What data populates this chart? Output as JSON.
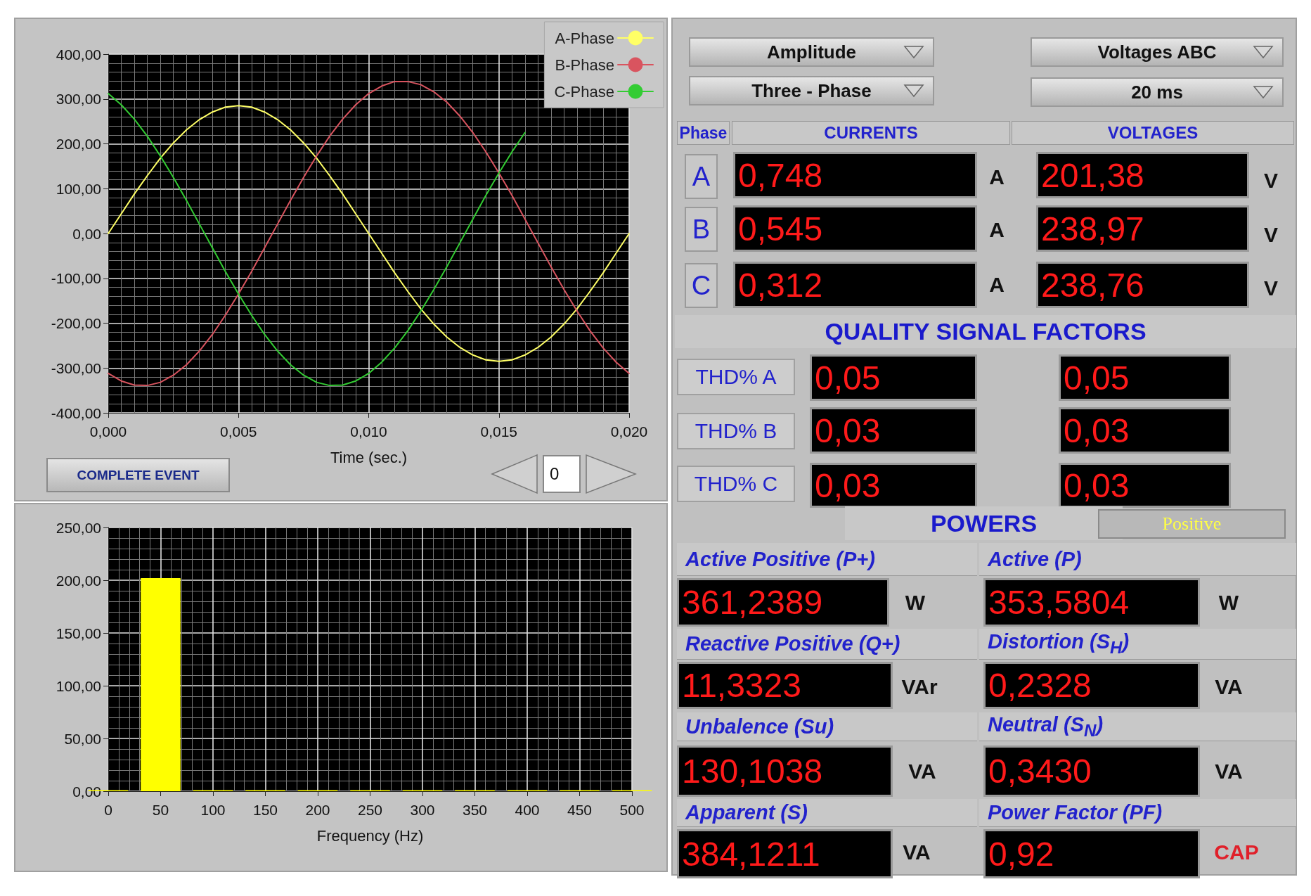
{
  "chart_data": [
    {
      "type": "line",
      "xlabel": "Time (sec.)",
      "legend": "top right",
      "grid": true,
      "x": [
        0,
        0.0005,
        0.001,
        0.0015,
        0.002,
        0.0025,
        0.003,
        0.0035,
        0.004,
        0.0045,
        0.005,
        0.0055,
        0.006,
        0.0065,
        0.007,
        0.0075,
        0.008,
        0.0085,
        0.009,
        0.0095,
        0.01,
        0.0105,
        0.011,
        0.0115,
        0.012,
        0.0125,
        0.013,
        0.0135,
        0.014,
        0.0145,
        0.015,
        0.0155,
        0.016,
        0.0165,
        0.017,
        0.0175,
        0.018,
        0.0185,
        0.019,
        0.0195,
        0.02
      ],
      "xlim": [
        0,
        0.02
      ],
      "xticks": [
        {
          "value": 0,
          "label": "0,000"
        },
        {
          "value": 0.005,
          "label": "0,005"
        },
        {
          "value": 0.01,
          "label": "0,010"
        },
        {
          "value": 0.015,
          "label": "0,015"
        },
        {
          "value": 0.02,
          "label": "0,020"
        }
      ],
      "ylim": [
        -400,
        400
      ],
      "yticks": [
        {
          "value": -400,
          "label": "-400,00"
        },
        {
          "value": -300,
          "label": "-300,00"
        },
        {
          "value": -200,
          "label": "-200,00"
        },
        {
          "value": -100,
          "label": "-100,00"
        },
        {
          "value": 0,
          "label": "0,00"
        },
        {
          "value": 100,
          "label": "100,00"
        },
        {
          "value": 200,
          "label": "200,00"
        },
        {
          "value": 300,
          "label": "300,00"
        },
        {
          "value": 400,
          "label": "400,00"
        }
      ],
      "annotations": [
        "COMPLETE EVENT",
        "0"
      ],
      "series": [
        {
          "name": "A-Phase",
          "color": "#ffff66",
          "values": [
            0,
            44,
            88,
            129,
            168,
            202,
            231,
            254,
            271,
            282,
            285,
            282,
            271,
            254,
            231,
            202,
            168,
            129,
            88,
            44,
            0,
            -44,
            -88,
            -129,
            -168,
            -202,
            -231,
            -254,
            -271,
            -282,
            -285,
            -282,
            -271,
            -254,
            -231,
            -202,
            -168,
            -129,
            -88,
            -44,
            0
          ]
        },
        {
          "name": "B-Phase",
          "color": "#d9545f",
          "values": [
            -312,
            -329,
            -338,
            -339,
            -332,
            -316,
            -293,
            -262,
            -225,
            -182,
            -135,
            -85,
            -32,
            21,
            74,
            125,
            173,
            217,
            255,
            287,
            312,
            329,
            339,
            339,
            332,
            316,
            293,
            262,
            225,
            182,
            135,
            85,
            32,
            -21,
            -74,
            -125,
            -173,
            -217,
            -255,
            -287,
            -312
          ]
        },
        {
          "name": "C-Phase",
          "color": "#33cc33",
          "values": [
            312,
            287,
            255,
            217,
            173,
            125,
            74,
            21,
            -32,
            -85,
            -135,
            -182,
            -225,
            -262,
            -293,
            -316,
            -332,
            -339,
            -338,
            -329,
            -312,
            -287,
            -255,
            -217,
            -173,
            -125,
            -74,
            -21,
            32,
            85,
            135,
            182,
            225,
            null,
            null,
            null,
            null,
            null,
            null,
            null,
            null
          ]
        }
      ]
    },
    {
      "type": "bar",
      "xlabel": "Frequency (Hz)",
      "grid": true,
      "color": "#ffff00",
      "x": [
        0,
        50,
        100,
        150,
        200,
        250,
        300,
        350,
        400,
        450,
        500
      ],
      "values": [
        1,
        202,
        1,
        1,
        1,
        1,
        1,
        1,
        1,
        1,
        1
      ],
      "xlim": [
        0,
        500
      ],
      "xticks": [
        0,
        50,
        100,
        150,
        200,
        250,
        300,
        350,
        400,
        450,
        500
      ],
      "ylim": [
        0,
        250
      ],
      "yticks": [
        {
          "value": 0,
          "label": "0,00"
        },
        {
          "value": 50,
          "label": "50,00"
        },
        {
          "value": 100,
          "label": "100,00"
        },
        {
          "value": 150,
          "label": "150,00"
        },
        {
          "value": 200,
          "label": "200,00"
        },
        {
          "value": 250,
          "label": "250,00"
        }
      ]
    },
    {
      "type": "other",
      "annotations": [
        "Amplitude",
        "Three - Phase",
        "Voltages ABC",
        "20 ms",
        "Phase",
        "CURRENTS",
        "VOLTAGES",
        "A",
        "0,748",
        "A",
        "201,38",
        "V",
        "B",
        "0,545",
        "A",
        "238,97",
        "V",
        "C",
        "0,312",
        "A",
        "238,76",
        "V",
        "QUALITY SIGNAL FACTORS",
        "THD% A",
        "0,05",
        "0,05",
        "THD% B",
        "0,03",
        "0,03",
        "THD% C",
        "0,03",
        "0,03",
        "POWERS",
        "Positive",
        "Active Positive (P+)",
        "Active (P)",
        "361,2389",
        "W",
        "353,5804",
        "W",
        "Reactive Positive (Q+)",
        "Distortion (S$_{H}$)",
        "11,3323",
        "VAr",
        "0,2328",
        "VA",
        "Unbalence (Su)",
        "Neutral (S$_{N}$)",
        "130,1038",
        "VA",
        "0,3430",
        "VA",
        "Apparent (S)",
        "Power Factor (PF)",
        "384,1211",
        "VA",
        "0,92",
        "CAP"
      ]
    }
  ]
}
